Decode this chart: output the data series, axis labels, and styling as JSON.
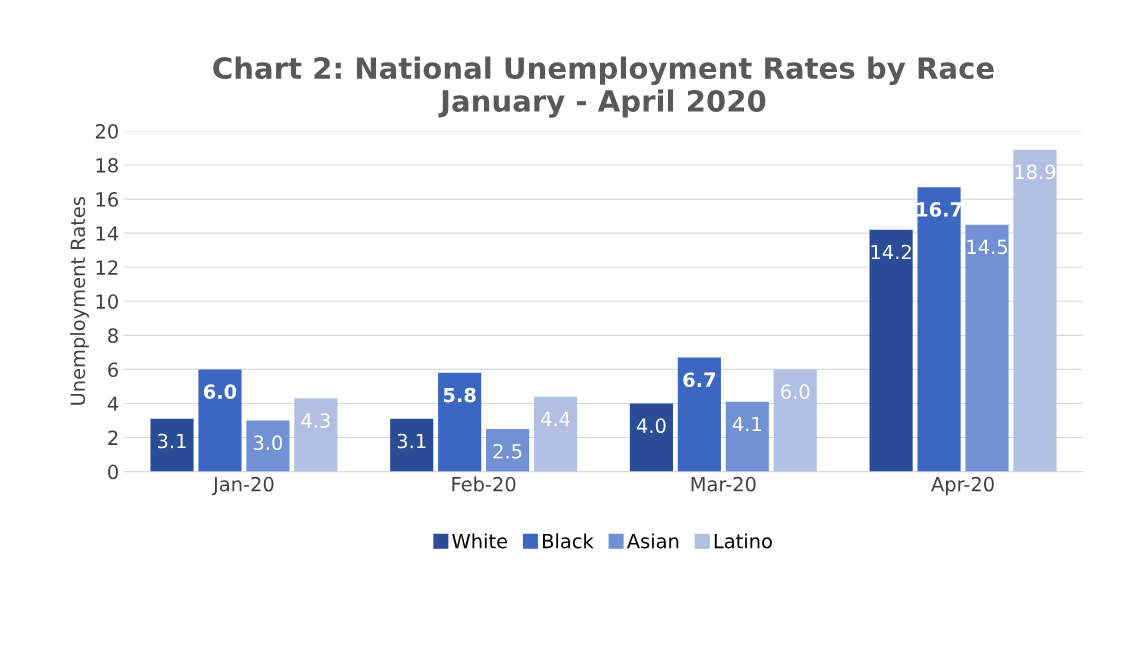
{
  "chart_data": {
    "type": "bar",
    "title": "Chart 2: National Unemployment Rates by Race\nJanuary - April 2020",
    "ylabel": "Unemployment Rates",
    "categories": [
      "Jan-20",
      "Feb-20",
      "Mar-20",
      "Apr-20"
    ],
    "series": [
      {
        "name": "White",
        "color": "#2b4c96",
        "values": [
          3.1,
          3.1,
          4.0,
          14.2
        ],
        "value_labels": [
          "3.1",
          "3.1",
          "4.0",
          "14.2"
        ]
      },
      {
        "name": "Black",
        "color": "#3b66c2",
        "values": [
          6.0,
          5.8,
          6.7,
          16.7
        ],
        "value_labels": [
          "6.0",
          "5.8",
          "6.7",
          "16.7"
        ]
      },
      {
        "name": "Asian",
        "color": "#7290d4",
        "values": [
          3.0,
          2.5,
          4.1,
          14.5
        ],
        "value_labels": [
          "3.0",
          "2.5",
          "4.1",
          "14.5"
        ]
      },
      {
        "name": "Latino",
        "color": "#b1bfe2",
        "values": [
          4.3,
          4.4,
          6.0,
          18.9
        ],
        "value_labels": [
          "4.3",
          "4.4",
          "6.0",
          "18.9"
        ]
      }
    ],
    "ylim": [
      0,
      20
    ],
    "yticks": [
      0,
      2,
      4,
      6,
      8,
      10,
      12,
      14,
      16,
      18,
      20
    ],
    "grid": "y",
    "legend": "bottom"
  }
}
